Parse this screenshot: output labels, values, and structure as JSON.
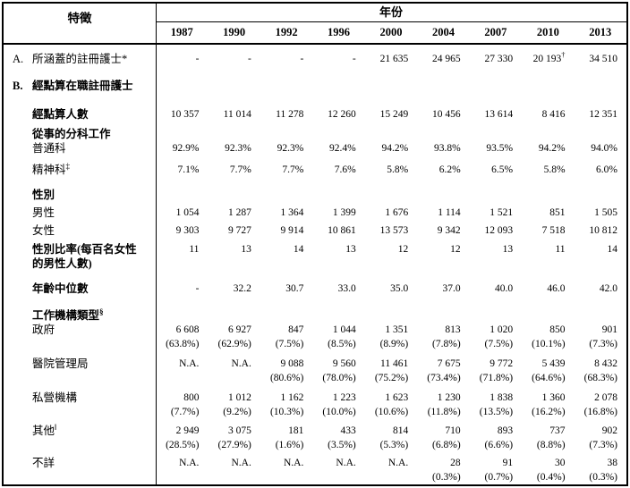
{
  "table": {
    "char_header": "特徵",
    "year_header": "年份",
    "years": [
      "1987",
      "1990",
      "1992",
      "1996",
      "2000",
      "2004",
      "2007",
      "2010",
      "2013"
    ],
    "rows": [
      {
        "id": "covered-registered-nurses",
        "prefix": "A.",
        "label": "所涵蓋的註冊護士*",
        "bold": false,
        "mt": 8,
        "values": [
          "-",
          "-",
          "-",
          "-",
          "21 635",
          "24 965",
          "27 330",
          "20 193†",
          "34 510"
        ]
      },
      {
        "id": "enumerated-rn-section",
        "prefix": "B.",
        "label": "經點算在職註冊護士",
        "bold": true,
        "mt": 14
      },
      {
        "id": "enumerated-count",
        "label": "經點算人數",
        "bold": true,
        "mt": 16,
        "values": [
          "10 357",
          "11 014",
          "11 278",
          "12 260",
          "15 249",
          "10 456",
          "13 614",
          "8 416",
          "12 351"
        ]
      },
      {
        "id": "specialty-of-work",
        "label": "從事的分科工作",
        "bold": true,
        "mt": 6
      },
      {
        "id": "general-stream",
        "label": "普通科",
        "bold": false,
        "mt": 0,
        "values": [
          "92.9%",
          "92.3%",
          "92.3%",
          "92.4%",
          "94.2%",
          "93.8%",
          "93.5%",
          "94.2%",
          "94.0%"
        ]
      },
      {
        "id": "psychiatric-stream",
        "label": "精神科",
        "sup": "‡",
        "bold": false,
        "mt": 8,
        "values": [
          "7.1%",
          "7.7%",
          "7.7%",
          "7.6%",
          "5.8%",
          "6.2%",
          "6.5%",
          "5.8%",
          "6.0%"
        ]
      },
      {
        "id": "sex-section",
        "label": "性別",
        "bold": true,
        "mt": 12
      },
      {
        "id": "male",
        "label": "男性",
        "bold": false,
        "mt": 4,
        "values": [
          "1 054",
          "1 287",
          "1 364",
          "1 399",
          "1 676",
          "1 114",
          "1 521",
          "851",
          "1 505"
        ]
      },
      {
        "id": "female",
        "label": "女性",
        "bold": false,
        "mt": 4,
        "values": [
          "9 303",
          "9 727",
          "9 914",
          "10 861",
          "13 573",
          "9 342",
          "12 093",
          "7 518",
          "10 812"
        ]
      },
      {
        "id": "sex-ratio",
        "label": "性別比率(每百名女性",
        "label2": "的男性人數)",
        "bold": true,
        "mt": 5,
        "values": [
          "11",
          "13",
          "14",
          "13",
          "12",
          "12",
          "13",
          "11",
          "14"
        ]
      },
      {
        "id": "median-age",
        "label": "年齡中位數",
        "bold": true,
        "mt": 12,
        "values": [
          "-",
          "32.2",
          "30.7",
          "33.0",
          "35.0",
          "37.0",
          "40.0",
          "46.0",
          "42.0"
        ]
      },
      {
        "id": "institution-type-section",
        "label": "工作機構類型",
        "sup": "§",
        "bold": true,
        "mt": 14
      },
      {
        "id": "government",
        "label": "政府",
        "bold": false,
        "mt": 0,
        "values": [
          "6 608",
          "6 927",
          "847",
          "1 044",
          "1 351",
          "813",
          "1 020",
          "850",
          "901"
        ],
        "values2": [
          "(63.8%)",
          "(62.9%)",
          "(7.5%)",
          "(8.5%)",
          "(8.9%)",
          "(7.8%)",
          "(7.5%)",
          "(10.1%)",
          "(7.3%)"
        ]
      },
      {
        "id": "hospital-authority",
        "label": "醫院管理局",
        "bold": false,
        "mt": 6,
        "values": [
          "N.A.",
          "N.A.",
          "9 088",
          "9 560",
          "11 461",
          "7 675",
          "9 772",
          "5 439",
          "8 432"
        ],
        "values2": [
          "",
          "",
          "(80.6%)",
          "(78.0%)",
          "(75.2%)",
          "(73.4%)",
          "(71.8%)",
          "(64.6%)",
          "(68.3%)"
        ]
      },
      {
        "id": "private-institutions",
        "label": "私營機構",
        "bold": false,
        "mt": 6,
        "values": [
          "800",
          "1 012",
          "1 162",
          "1 223",
          "1 623",
          "1 230",
          "1 838",
          "1 360",
          "2 078"
        ],
        "values2": [
          "(7.7%)",
          "(9.2%)",
          "(10.3%)",
          "(10.0%)",
          "(10.6%)",
          "(11.8%)",
          "(13.5%)",
          "(16.2%)",
          "(16.8%)"
        ]
      },
      {
        "id": "others",
        "label": "其他",
        "sup": "‖",
        "bold": false,
        "mt": 5,
        "values": [
          "2 949",
          "3 075",
          "181",
          "433",
          "814",
          "710",
          "893",
          "737",
          "902"
        ],
        "values2": [
          "(28.5%)",
          "(27.9%)",
          "(1.6%)",
          "(3.5%)",
          "(5.3%)",
          "(6.8%)",
          "(6.6%)",
          "(8.8%)",
          "(7.3%)"
        ]
      },
      {
        "id": "unknown",
        "label": "不詳",
        "bold": false,
        "mt": 4,
        "values": [
          "N.A.",
          "N.A.",
          "N.A.",
          "N.A.",
          "N.A.",
          "28",
          "91",
          "30",
          "38"
        ],
        "values2": [
          "",
          "",
          "",
          "",
          "",
          "(0.3%)",
          "(0.7%)",
          "(0.4%)",
          "(0.3%)"
        ]
      }
    ]
  }
}
